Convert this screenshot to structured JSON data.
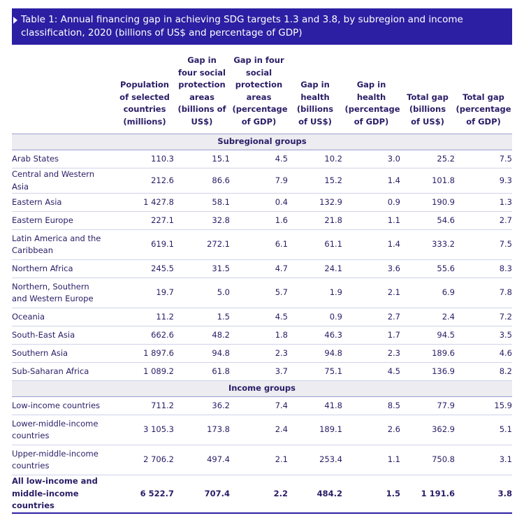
{
  "title": "Table 1: Annual financing gap in achieving SDG targets 1.3 and 3.8, by subregion and income classification, 2020 (billions of US$ and percentage of GDP)",
  "table": {
    "columns": [
      "Population of selected countries (millions)",
      "Gap in four social protection areas (billions of US$)",
      "Gap in four social protection areas (percentage of GDP)",
      "Gap in health (billions of US$)",
      "Gap in health (percentage of GDP)",
      "Total gap (billions of US$)",
      "Total gap (percentage of GDP)"
    ],
    "sections": [
      {
        "label": "Subregional groups",
        "rows": [
          [
            "Arab States",
            "110.3",
            "15.1",
            "4.5",
            "10.2",
            "3.0",
            "25.2",
            "7.5"
          ],
          [
            "Central and Western Asia",
            "212.6",
            "86.6",
            "7.9",
            "15.2",
            "1.4",
            "101.8",
            "9.3"
          ],
          [
            "Eastern Asia",
            "1 427.8",
            "58.1",
            "0.4",
            "132.9",
            "0.9",
            "190.9",
            "1.3"
          ],
          [
            "Eastern Europe",
            "227.1",
            "32.8",
            "1.6",
            "21.8",
            "1.1",
            "54.6",
            "2.7"
          ],
          [
            "Latin America and the Caribbean",
            "619.1",
            "272.1",
            "6.1",
            "61.1",
            "1.4",
            "333.2",
            "7.5"
          ],
          [
            "Northern Africa",
            "245.5",
            "31.5",
            "4.7",
            "24.1",
            "3.6",
            "55.6",
            "8.3"
          ],
          [
            "Northern, Southern and Western Europe",
            "19.7",
            "5.0",
            "5.7",
            "1.9",
            "2.1",
            "6.9",
            "7.8"
          ],
          [
            "Oceania",
            "11.2",
            "1.5",
            "4.5",
            "0.9",
            "2.7",
            "2.4",
            "7.2"
          ],
          [
            "South-East Asia",
            "662.6",
            "48.2",
            "1.8",
            "46.3",
            "1.7",
            "94.5",
            "3.5"
          ],
          [
            "Southern Asia",
            "1 897.6",
            "94.8",
            "2.3",
            "94.8",
            "2.3",
            "189.6",
            "4.6"
          ],
          [
            "Sub-Saharan Africa",
            "1 089.2",
            "61.8",
            "3.7",
            "75.1",
            "4.5",
            "136.9",
            "8.2"
          ]
        ]
      },
      {
        "label": "Income groups",
        "rows": [
          [
            "Low-income countries",
            "711.2",
            "36.2",
            "7.4",
            "41.8",
            "8.5",
            "77.9",
            "15.9"
          ],
          [
            "Lower-middle-income countries",
            "3 105.3",
            "173.8",
            "2.4",
            "189.1",
            "2.6",
            "362.9",
            "5.1"
          ],
          [
            "Upper-middle-income countries",
            "2 706.2",
            "497.4",
            "2.1",
            "253.4",
            "1.1",
            "750.8",
            "3.1"
          ],
          [
            "All low-income and middle-income countries",
            "6 522.7",
            "707.4",
            "2.2",
            "484.2",
            "1.5",
            "1 191.6",
            "3.8"
          ]
        ]
      }
    ]
  }
}
